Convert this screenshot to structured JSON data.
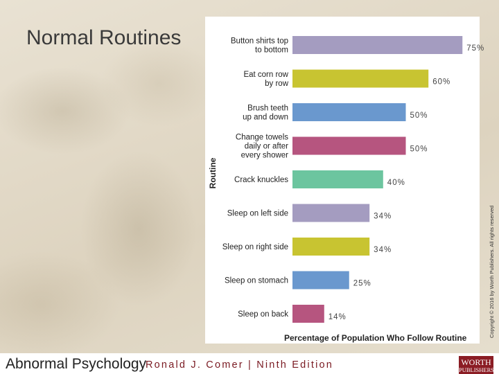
{
  "slide": {
    "title": "Normal Routines"
  },
  "copyright": "Copyright © 2016 by Worth Publishers. All rights reserved",
  "footer": {
    "book": "Abnormal Psychology",
    "author": "Ronald J. Comer | Ninth Edition",
    "publisher_line1": "WORTH",
    "publisher_line2": "PUBLISHERS"
  },
  "chart_data": {
    "type": "bar",
    "orientation": "horizontal",
    "xlabel": "Percentage of Population Who Follow Routine",
    "ylabel": "Routine",
    "xlim": [
      0,
      80
    ],
    "grid": false,
    "categories": [
      [
        "Button shirts top",
        "to bottom"
      ],
      [
        "Eat corn row",
        "by row"
      ],
      [
        "Brush teeth",
        "up and down"
      ],
      [
        "Change towels",
        "daily or after",
        "every shower"
      ],
      [
        "Crack knuckles"
      ],
      [
        "Sleep on left side"
      ],
      [
        "Sleep on right side"
      ],
      [
        "Sleep on stomach"
      ],
      [
        "Sleep on back"
      ]
    ],
    "values": [
      75,
      60,
      50,
      50,
      40,
      34,
      34,
      25,
      14
    ],
    "value_labels": [
      "75%",
      "60%",
      "50%",
      "50%",
      "40%",
      "34%",
      "34%",
      "25%",
      "14%"
    ],
    "colors": [
      "#a49cc0",
      "#c8c431",
      "#6a98ce",
      "#b6557f",
      "#6cc59f",
      "#a49cc0",
      "#c8c431",
      "#6a98ce",
      "#b6557f"
    ]
  }
}
